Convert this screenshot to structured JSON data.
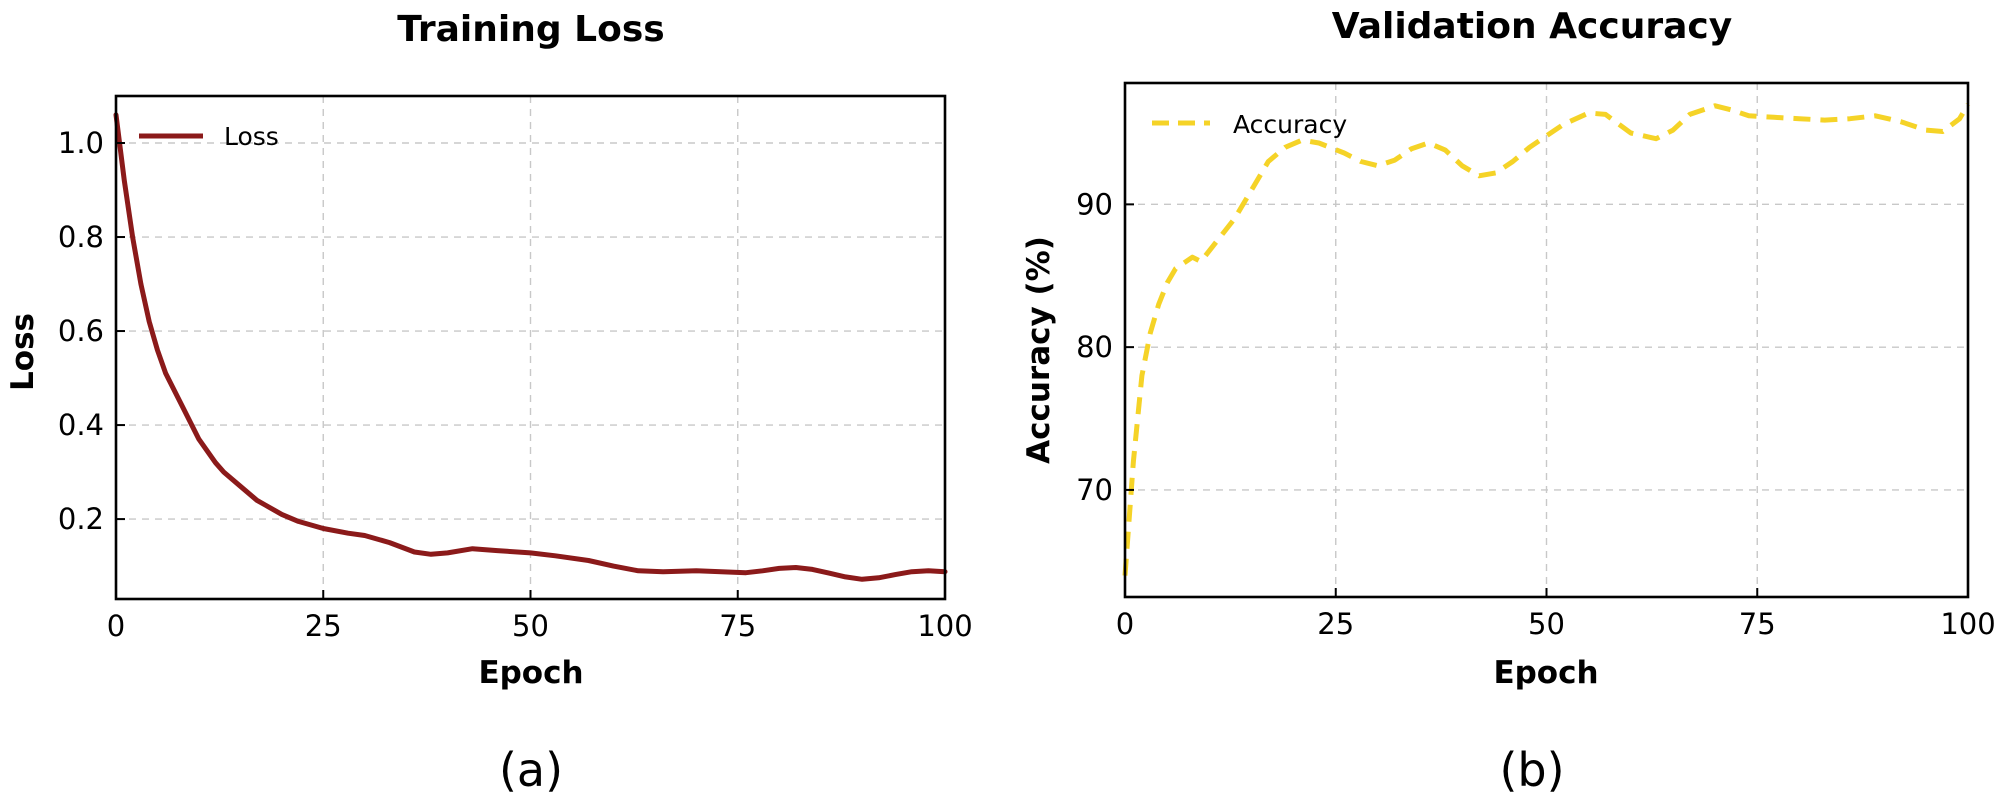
{
  "chart_data": [
    {
      "type": "line",
      "title": "Training Loss",
      "xlabel": "Epoch",
      "ylabel": "Loss",
      "caption": "(a)",
      "xlim": [
        0,
        100
      ],
      "ylim": [
        0.03,
        1.1
      ],
      "xticks": [
        0,
        25,
        50,
        75,
        100
      ],
      "yticks": [
        0.2,
        0.4,
        0.6,
        0.8,
        1.0
      ],
      "xtick_labels": [
        "0",
        "25",
        "50",
        "75",
        "100"
      ],
      "ytick_labels": [
        "0.2",
        "0.4",
        "0.6",
        "0.8",
        "1.0"
      ],
      "grid": true,
      "legend_position": "top-left",
      "series": [
        {
          "name": "Loss",
          "color": "#8b1a1a",
          "line_style": "solid",
          "x": [
            0,
            1,
            2,
            3,
            4,
            5,
            6,
            8,
            10,
            12,
            13,
            15,
            17,
            18,
            20,
            22,
            25,
            28,
            30,
            33,
            36,
            38,
            40,
            43,
            46,
            50,
            53,
            57,
            60,
            63,
            66,
            70,
            73,
            76,
            78,
            80,
            82,
            84,
            86,
            88,
            90,
            92,
            94,
            96,
            98,
            100
          ],
          "y": [
            1.06,
            0.92,
            0.8,
            0.7,
            0.62,
            0.56,
            0.51,
            0.44,
            0.37,
            0.32,
            0.3,
            0.27,
            0.24,
            0.23,
            0.21,
            0.195,
            0.18,
            0.17,
            0.165,
            0.15,
            0.13,
            0.125,
            0.128,
            0.137,
            0.133,
            0.128,
            0.122,
            0.112,
            0.1,
            0.09,
            0.088,
            0.09,
            0.088,
            0.086,
            0.09,
            0.095,
            0.097,
            0.093,
            0.085,
            0.077,
            0.072,
            0.075,
            0.082,
            0.088,
            0.09,
            0.088
          ]
        }
      ]
    },
    {
      "type": "line",
      "title": "Validation Accuracy",
      "xlabel": "Epoch",
      "ylabel": "Accuracy (%)",
      "caption": "(b)",
      "xlim": [
        0,
        100
      ],
      "ylim": [
        62.5,
        98.5
      ],
      "xticks": [
        0,
        25,
        50,
        75,
        100
      ],
      "yticks": [
        70,
        80,
        90
      ],
      "xtick_labels": [
        "0",
        "25",
        "50",
        "75",
        "100"
      ],
      "ytick_labels": [
        "70",
        "80",
        "90"
      ],
      "grid": true,
      "legend_position": "top-left",
      "series": [
        {
          "name": "Accuracy",
          "color": "#f5d327",
          "line_style": "dashed",
          "x": [
            0,
            1,
            2,
            3,
            4,
            5,
            6,
            8,
            9,
            11,
            13,
            15,
            17,
            19,
            21,
            23,
            26,
            28,
            30,
            32,
            34,
            36,
            38,
            40,
            42,
            44,
            46,
            48,
            50,
            52,
            55,
            57,
            60,
            63,
            65,
            67,
            70,
            72,
            74,
            77,
            80,
            83,
            86,
            89,
            92,
            95,
            97,
            99,
            100
          ],
          "y": [
            64,
            72,
            78,
            81,
            83,
            84.5,
            85.5,
            86.3,
            86,
            87.5,
            89,
            91,
            93,
            94,
            94.5,
            94.3,
            93.6,
            93,
            92.7,
            93.1,
            93.9,
            94.3,
            93.8,
            92.7,
            92,
            92.2,
            93,
            94,
            94.8,
            95.6,
            96.4,
            96.3,
            95,
            94.6,
            95.2,
            96.3,
            96.9,
            96.6,
            96.2,
            96.1,
            96,
            95.9,
            96,
            96.2,
            95.8,
            95.2,
            95.1,
            96,
            97
          ]
        }
      ]
    }
  ]
}
